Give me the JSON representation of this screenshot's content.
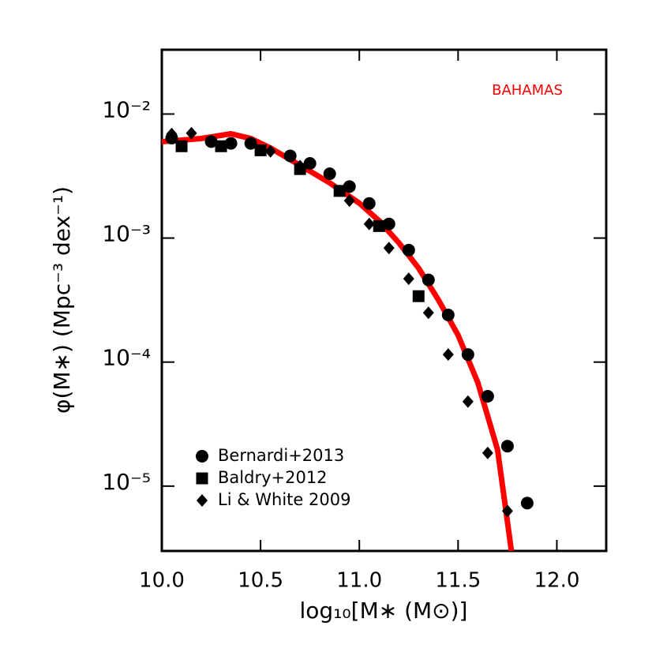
{
  "chart_data": {
    "type": "scatter-line",
    "annotation": "BAHAMAS",
    "annotation_color": "#ff0000",
    "xlabel": "log₁₀[M∗ (M⊙)]",
    "ylabel": "φ(M∗)  (Mpc⁻³ dex⁻¹)",
    "log_y": true,
    "legend": "lower left",
    "xlim": [
      10.0,
      12.25
    ],
    "xticks": [
      {
        "value": 10.0,
        "label": "10.0"
      },
      10.5,
      {
        "value": 11.0,
        "label": "11.0"
      },
      11.5,
      {
        "value": 12.0,
        "label": "12.0"
      }
    ],
    "ylim": [
      3e-06,
      0.033
    ],
    "yticks": [
      {
        "value": 0.01,
        "label": "10⁻²"
      },
      {
        "value": 0.001,
        "label": "10⁻³"
      },
      {
        "value": 0.0001,
        "label": "10⁻⁴"
      },
      {
        "value": 1e-05,
        "label": "10⁻⁵"
      }
    ],
    "line": {
      "color": "#ff0000",
      "x": [
        10.0,
        10.2,
        10.35,
        10.45,
        10.55,
        10.7,
        10.85,
        11.0,
        11.1,
        11.2,
        11.3,
        11.4,
        11.5,
        11.6,
        11.7,
        11.77
      ],
      "values": [
        0.00598,
        0.00635,
        0.00693,
        0.00635,
        0.00532,
        0.00386,
        0.00279,
        0.00191,
        0.00138,
        0.000916,
        0.000573,
        0.000318,
        0.000165,
        6.83e-05,
        1.96e-05,
        3e-06
      ]
    },
    "series": [
      {
        "name": "Bernardi+2013",
        "marker": "circle",
        "color": "#000000",
        "x": [
          10.05,
          10.25,
          10.35,
          10.45,
          10.65,
          10.75,
          10.85,
          10.95,
          11.05,
          11.15,
          11.25,
          11.35,
          11.45,
          11.55,
          11.65,
          11.75,
          11.85
        ],
        "values": [
          0.0064,
          0.006,
          0.0058,
          0.0058,
          0.0046,
          0.004,
          0.0033,
          0.0026,
          0.0019,
          0.0013,
          0.0008,
          0.00046,
          0.00024,
          0.000115,
          5.3e-05,
          2.1e-05,
          7.3e-06
        ]
      },
      {
        "name": "Baldry+2012",
        "marker": "square",
        "color": "#000000",
        "x": [
          10.1,
          10.3,
          10.5,
          10.7,
          10.9,
          11.1,
          11.3
        ],
        "values": [
          0.0055,
          0.0055,
          0.0051,
          0.0036,
          0.0024,
          0.00125,
          0.00034
        ]
      },
      {
        "name": "Li & White 2009",
        "marker": "diamond",
        "color": "#000000",
        "x": [
          10.05,
          10.15,
          10.55,
          10.7,
          10.9,
          10.95,
          11.05,
          11.15,
          11.25,
          11.35,
          11.45,
          11.55,
          11.65,
          11.75
        ],
        "values": [
          0.0069,
          0.007,
          0.005,
          0.0038,
          0.0024,
          0.002,
          0.0013,
          0.00083,
          0.00047,
          0.00025,
          0.000115,
          4.8e-05,
          1.85e-05,
          6.3e-06
        ]
      }
    ]
  }
}
